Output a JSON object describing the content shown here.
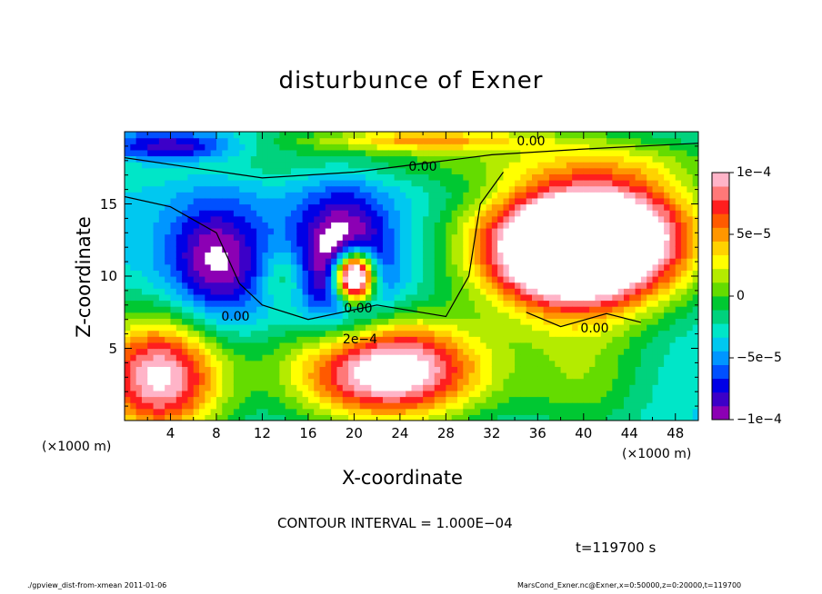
{
  "chart_data": {
    "type": "heatmap",
    "title": "disturbunce of Exner",
    "xlabel": "X-coordinate",
    "ylabel": "Z-coordinate",
    "x_unit_label": "(×1000 m)",
    "xlim": [
      0,
      50
    ],
    "ylim": [
      0,
      20
    ],
    "x_ticks": [
      4,
      8,
      12,
      16,
      20,
      24,
      28,
      32,
      36,
      40,
      44,
      48
    ],
    "y_ticks": [
      5,
      10,
      15
    ],
    "colorbar": {
      "range": [
        -0.0001,
        0.0001
      ],
      "tick_labels": [
        "1e−4",
        "5e−5",
        "0",
        "−5e−5",
        "−1e−4"
      ],
      "tick_values": [
        0.0001,
        5e-05,
        0,
        -5e-05,
        -0.0001
      ],
      "colors": [
        "#8c00b4",
        "#3c00c8",
        "#0000e6",
        "#0050ff",
        "#0096ff",
        "#00c8f0",
        "#00e6c8",
        "#00d27d",
        "#00c832",
        "#64dc00",
        "#b4eb00",
        "#ffff00",
        "#ffd200",
        "#ff9600",
        "#ff5a00",
        "#ff1e1e",
        "#ff7878",
        "#ffb4c8"
      ]
    },
    "contour_labels": [
      "0.00",
      "0.00",
      "0.00",
      "2e−4",
      "0.00",
      "0.00"
    ],
    "contour_interval_text": "CONTOUR INTERVAL = 1.000E−04",
    "time_text": "t=119700 s"
  },
  "footer": {
    "left": "./gpview_dist-from-xmean  2011-01-06",
    "right": "MarsCond_Exner.nc@Exner,x=0:50000,z=0:20000,t=119700"
  }
}
